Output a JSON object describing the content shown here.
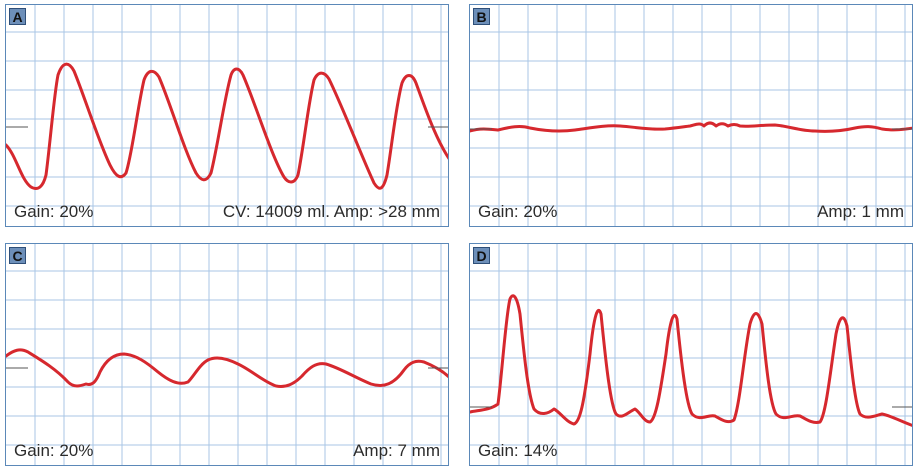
{
  "panels": [
    {
      "id": "A",
      "gain": "Gain: 20%",
      "info": "CV: 14009 ml. Amp: >28 mm"
    },
    {
      "id": "B",
      "gain": "Gain: 20%",
      "info": "Amp: 1 mm"
    },
    {
      "id": "C",
      "gain": "Gain: 20%",
      "info": "Amp: 7 mm"
    },
    {
      "id": "D",
      "gain": "Gain: 14%",
      "info": ""
    }
  ],
  "colors": {
    "grid": "#a9c6e6",
    "border": "#5b88b8",
    "trace": "#d6282e"
  }
}
